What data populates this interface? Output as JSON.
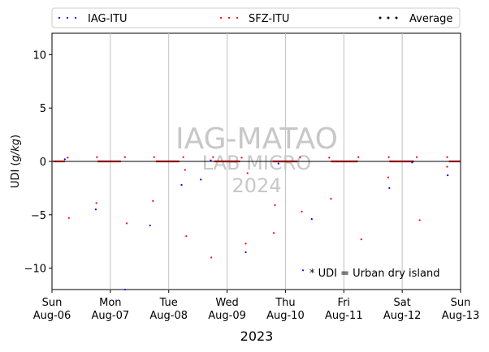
{
  "chart_data": {
    "type": "scatter",
    "ylabel_prefix": "UDI (",
    "ylabel_unit": "g/kg",
    "ylabel_suffix": ")",
    "xlabel": "2023",
    "ylim": [
      -12,
      12
    ],
    "yticks": [
      -10,
      -5,
      0,
      5,
      10
    ],
    "xlim": [
      0,
      7
    ],
    "xticks": [
      {
        "pos": 0,
        "day": "Sun",
        "date": "Aug-06"
      },
      {
        "pos": 1,
        "day": "Mon",
        "date": "Aug-07"
      },
      {
        "pos": 2,
        "day": "Tue",
        "date": "Aug-08"
      },
      {
        "pos": 3,
        "day": "Wed",
        "date": "Aug-09"
      },
      {
        "pos": 4,
        "day": "Thu",
        "date": "Aug-10"
      },
      {
        "pos": 5,
        "day": "Fri",
        "date": "Aug-11"
      },
      {
        "pos": 6,
        "day": "Sat",
        "date": "Aug-12"
      },
      {
        "pos": 7,
        "day": "Sun",
        "date": "Aug-13"
      }
    ],
    "grid": "vertical",
    "legend_position": "top",
    "watermark": [
      "IAG-MATAO",
      "LAB MICRO",
      "2024"
    ],
    "annotation": "* UDI = Urban dry island",
    "series": [
      {
        "name": "IAG-ITU",
        "color": "#0000ff",
        "points": [
          [
            0.22,
            0.2
          ],
          [
            0.75,
            -4.5
          ],
          [
            1.25,
            -12.0
          ],
          [
            1.68,
            -6.0
          ],
          [
            2.22,
            -2.2
          ],
          [
            2.55,
            -1.7
          ],
          [
            2.72,
            0.1
          ],
          [
            3.32,
            -8.5
          ],
          [
            3.88,
            -0.2
          ],
          [
            4.45,
            -5.4
          ],
          [
            5.78,
            -2.5
          ],
          [
            6.17,
            -0.1
          ],
          [
            6.78,
            -1.3
          ],
          [
            4.3,
            -10.2
          ]
        ]
      },
      {
        "name": "SFZ-ITU",
        "color": "#ff0000",
        "points": [
          [
            0.27,
            0.35
          ],
          [
            0.29,
            -5.3
          ],
          [
            0.77,
            0.4
          ],
          [
            0.76,
            -3.9
          ],
          [
            1.25,
            0.4
          ],
          [
            1.28,
            -5.8
          ],
          [
            1.75,
            0.4
          ],
          [
            1.73,
            -3.7
          ],
          [
            2.25,
            0.4
          ],
          [
            2.28,
            -0.8
          ],
          [
            2.3,
            -7.0
          ],
          [
            2.73,
            -9.0
          ],
          [
            2.76,
            0.4
          ],
          [
            3.25,
            0.35
          ],
          [
            3.32,
            -7.7
          ],
          [
            3.35,
            -1.1
          ],
          [
            3.8,
            -6.7
          ],
          [
            3.82,
            -4.1
          ],
          [
            4.25,
            0.4
          ],
          [
            4.28,
            -4.7
          ],
          [
            4.75,
            0.35
          ],
          [
            4.78,
            -3.5
          ],
          [
            5.25,
            0.4
          ],
          [
            5.3,
            -7.3
          ],
          [
            5.77,
            0.4
          ],
          [
            5.76,
            -1.5
          ],
          [
            6.25,
            0.4
          ],
          [
            6.3,
            -5.5
          ],
          [
            6.77,
            0.4
          ],
          [
            6.77,
            -0.5
          ]
        ]
      },
      {
        "name": "Average",
        "color": "#000000",
        "points": []
      }
    ]
  }
}
